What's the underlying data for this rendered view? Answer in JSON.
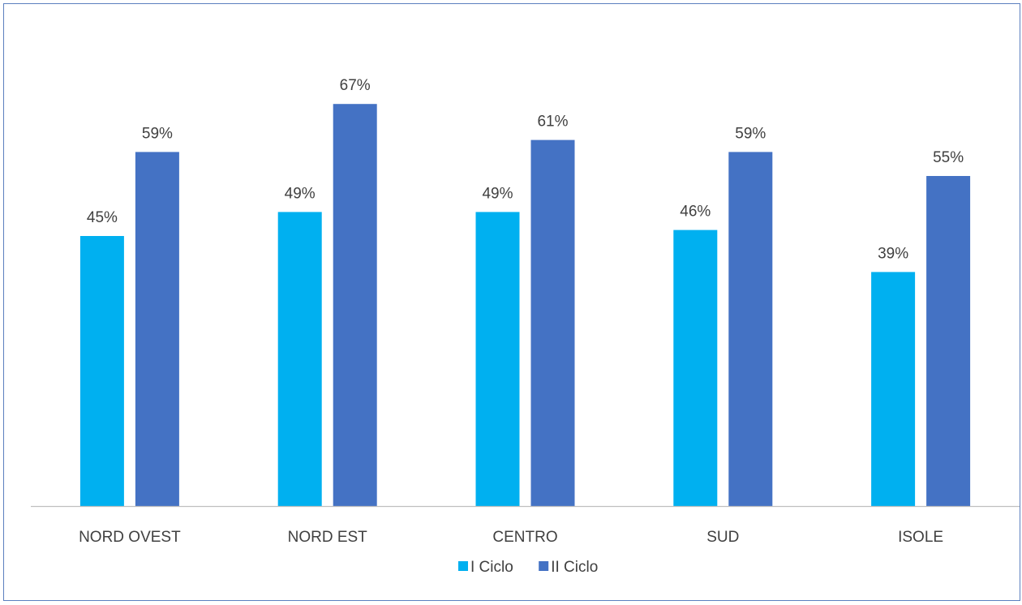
{
  "chart_data": {
    "type": "bar",
    "categories": [
      "NORD OVEST",
      "NORD EST",
      "CENTRO",
      "SUD",
      "ISOLE"
    ],
    "series": [
      {
        "name": "I Ciclo",
        "color": "#00b0f0",
        "values": [
          45,
          49,
          49,
          46,
          39
        ],
        "labels": [
          "45%",
          "49%",
          "49%",
          "46%",
          "39%"
        ]
      },
      {
        "name": "II Ciclo",
        "color": "#4472c4",
        "values": [
          59,
          67,
          61,
          59,
          55
        ],
        "labels": [
          "59%",
          "67%",
          "61%",
          "59%",
          "55%"
        ]
      }
    ],
    "ylim": [
      0,
      70
    ],
    "unit": "%",
    "grid": false,
    "legend": "bottom-center",
    "axis_color": "#bfbfbf",
    "text_color": "#404040"
  }
}
